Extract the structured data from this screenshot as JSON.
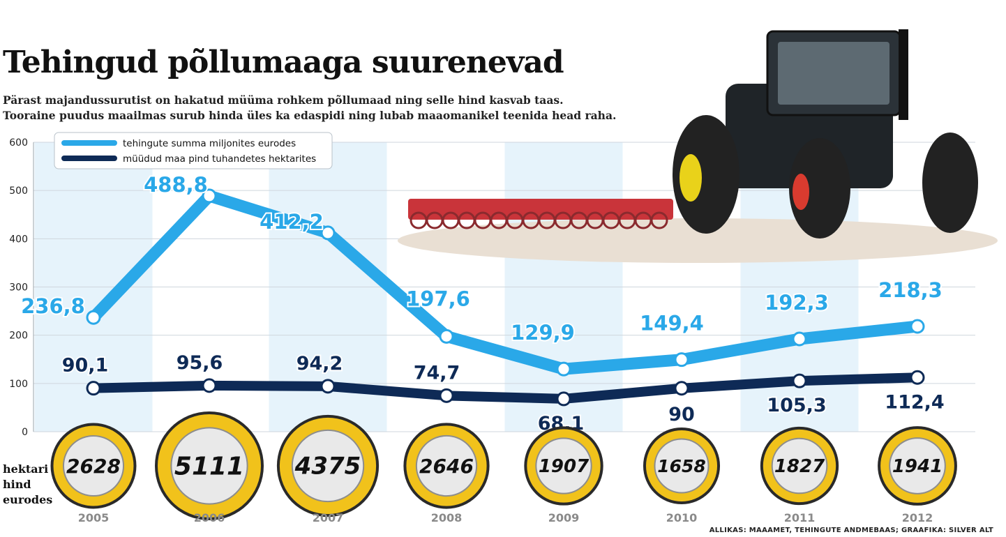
{
  "title": "Tehingud põllumaaga suurenevad",
  "subtitle": "Pärast majandussurutist on hakatud müüma rohkem põllumaad ning selle hind kasvab taas. Tooraine puudus maailmas surub hinda üles ka edaspidi ning lubab maaomanikel teenida head raha.",
  "coin_caption": [
    "hektari",
    "hind",
    "eurodes"
  ],
  "credit": "ALLIKAS: MAAAMET, TEHINGUTE ANDMEBAAS; GRAAFIKA: SILVER ALT",
  "colors": {
    "light": "#2aa8e8",
    "dark": "#0e2a56",
    "coin_gold": "#f1c21b",
    "band": "#e6f3fb",
    "grid": "#cfd6dd"
  },
  "chart_data": {
    "type": "line",
    "x": [
      "2005",
      "2006",
      "2007",
      "2008",
      "2009",
      "2010",
      "2011",
      "2012"
    ],
    "ylim": [
      0,
      600
    ],
    "yticks": [
      0,
      100,
      200,
      300,
      400,
      500,
      600
    ],
    "grid": true,
    "legend_position": "top-left",
    "series": [
      {
        "name": "tehingute summa miljonites eurodes",
        "values": [
          236.8,
          488.8,
          412.2,
          197.6,
          129.9,
          149.4,
          192.3,
          218.3
        ],
        "labels": [
          "236,8",
          "488,8",
          "412,2",
          "197,6",
          "129,9",
          "149,4",
          "192,3",
          "218,3"
        ]
      },
      {
        "name": "müüdud maa pind tuhandetes hektarites",
        "values": [
          90.1,
          95.6,
          94.2,
          74.7,
          68.1,
          90,
          105.3,
          112.4
        ],
        "labels": [
          "90,1",
          "95,6",
          "94,2",
          "74,7",
          "68,1",
          "90",
          "105,3",
          "112,4"
        ]
      }
    ],
    "coins": {
      "values": [
        2628,
        5111,
        4375,
        2646,
        1907,
        1658,
        1827,
        1941
      ],
      "labels": [
        "2628",
        "5111",
        "4375",
        "2646",
        "1907",
        "1658",
        "1827",
        "1941"
      ]
    }
  }
}
